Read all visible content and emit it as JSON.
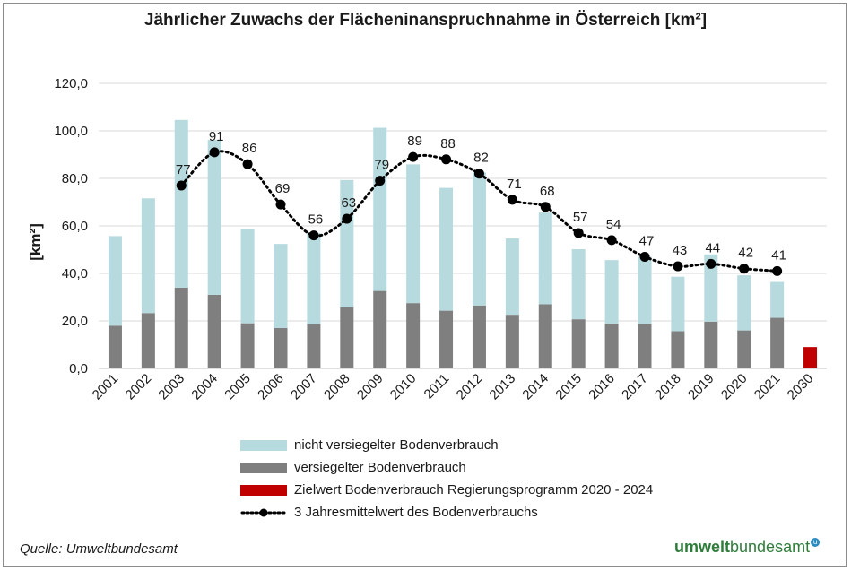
{
  "chart_data": {
    "type": "bar",
    "title": "Jährlicher Zuwachs der Flächeninanspruchnahme in Österreich [km²]",
    "ylabel": "[km²]",
    "ylim": [
      0,
      120
    ],
    "yticks": [
      "0,0",
      "20,0",
      "40,0",
      "60,0",
      "80,0",
      "100,0",
      "120,0"
    ],
    "categories": [
      "2001",
      "2002",
      "2003",
      "2004",
      "2005",
      "2006",
      "2007",
      "2008",
      "2009",
      "2010",
      "2011",
      "2012",
      "2013",
      "2014",
      "2015",
      "2016",
      "2017",
      "2018",
      "2019",
      "2020",
      "2021",
      "2030"
    ],
    "series": [
      {
        "name": "versiegelter Bodenverbrauch",
        "type": "bar",
        "color": "#7f7f7f",
        "values": [
          18,
          23.3,
          34,
          31,
          19,
          17,
          18.6,
          25.7,
          32.6,
          27.5,
          24.3,
          26.5,
          22.6,
          27,
          20.7,
          18.8,
          18.7,
          15.7,
          19.7,
          16,
          21.3,
          null
        ]
      },
      {
        "name": "nicht versiegelter Bodenverbrauch",
        "type": "bar-stacked",
        "color": "#b6dade",
        "values": [
          37.7,
          48.3,
          70.6,
          65.2,
          39.5,
          35.4,
          38.4,
          53.6,
          68.7,
          58.4,
          51.7,
          56,
          32.1,
          38.6,
          29.5,
          26.8,
          28.3,
          22.9,
          28.3,
          23.2,
          15.1,
          null
        ]
      },
      {
        "name": "Zielwert Bodenverbrauch Regierungsprogramm 2020 - 2024",
        "type": "bar",
        "color": "#c00000",
        "values": [
          null,
          null,
          null,
          null,
          null,
          null,
          null,
          null,
          null,
          null,
          null,
          null,
          null,
          null,
          null,
          null,
          null,
          null,
          null,
          null,
          null,
          9
        ]
      },
      {
        "name": "3 Jahresmittelwert des Bodenverbrauchs",
        "type": "line-dotted",
        "color": "#000000",
        "values": [
          null,
          null,
          77,
          91,
          86,
          69,
          56,
          63,
          79,
          89,
          88,
          82,
          71,
          68,
          57,
          54,
          47,
          43,
          44,
          42,
          41,
          null
        ],
        "labels": [
          null,
          null,
          "77",
          "91",
          "86",
          "69",
          "56",
          "63",
          "79",
          "89",
          "88",
          "82",
          "71",
          "68",
          "57",
          "54",
          "47",
          "43",
          "44",
          "42",
          "41",
          null
        ]
      }
    ],
    "grid": true,
    "legend_position": "bottom"
  },
  "source": "Quelle: Umweltbundesamt",
  "logo": {
    "part1": "umwelt",
    "part2": "bundesamt",
    "badge": "u"
  }
}
